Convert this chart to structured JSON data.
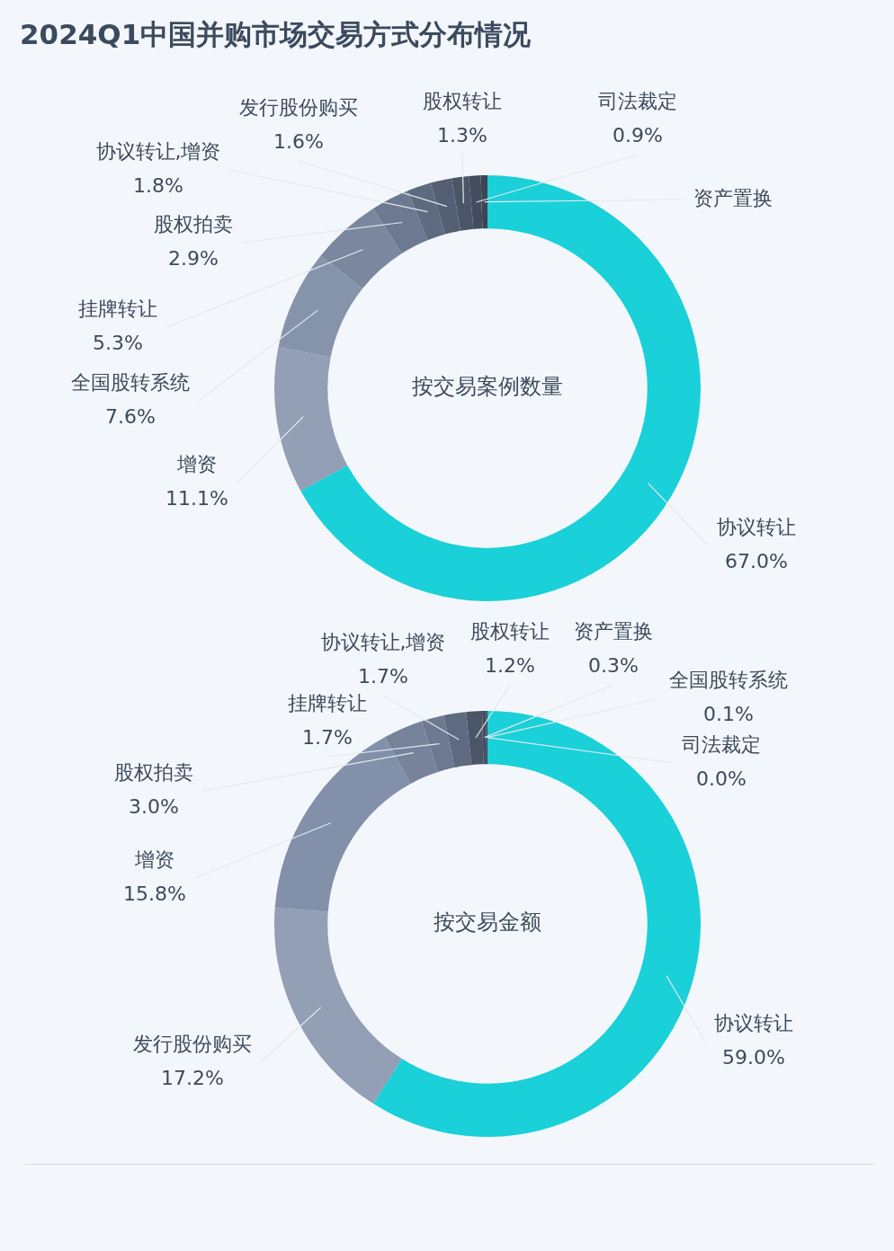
{
  "chart_data": [
    {
      "type": "donut",
      "title": "2024Q1中国并购市场交易方式分布情况",
      "subtitle": "按交易案例数量",
      "categories": [
        "协议转让",
        "增资",
        "全国股转系统",
        "挂牌转让",
        "股权拍卖",
        "协议转让,增资",
        "发行股份购买",
        "股权转让",
        "司法裁定",
        "资产置换"
      ],
      "values": [
        67.0,
        11.1,
        7.6,
        5.3,
        2.9,
        1.8,
        1.6,
        1.3,
        0.9,
        0.5
      ],
      "value_labels": [
        "67.0%",
        "11.1%",
        "7.6%",
        "5.3%",
        "2.9%",
        "1.8%",
        "1.6%",
        "1.3%",
        "0.9%",
        null
      ],
      "colors": [
        "#1ad0d9",
        "#929fb5",
        "#8593ab",
        "#7a879f",
        "#6c7990",
        "#5e6a80",
        "#545f73",
        "#4b5568",
        "#434c5e",
        "#3c4455"
      ]
    },
    {
      "type": "donut",
      "subtitle": "按交易金额",
      "categories": [
        "协议转让",
        "发行股份购买",
        "增资",
        "股权拍卖",
        "挂牌转让",
        "协议转让,增资",
        "股权转让",
        "资产置换",
        "全国股转系统",
        "司法裁定"
      ],
      "values": [
        59.0,
        17.2,
        15.8,
        3.0,
        1.7,
        1.7,
        1.2,
        0.3,
        0.1,
        0.0
      ],
      "value_labels": [
        "59.0%",
        "17.2%",
        "15.8%",
        "3.0%",
        "1.7%",
        "1.7%",
        "1.2%",
        "0.3%",
        "0.1%",
        "0.0%"
      ],
      "colors": [
        "#1ad0d9",
        "#929fb5",
        "#8290aa",
        "#76839b",
        "#6c7990",
        "#5e6a80",
        "#4b5568",
        "#434c5e",
        "#3c4455",
        "#353c4b"
      ]
    }
  ]
}
